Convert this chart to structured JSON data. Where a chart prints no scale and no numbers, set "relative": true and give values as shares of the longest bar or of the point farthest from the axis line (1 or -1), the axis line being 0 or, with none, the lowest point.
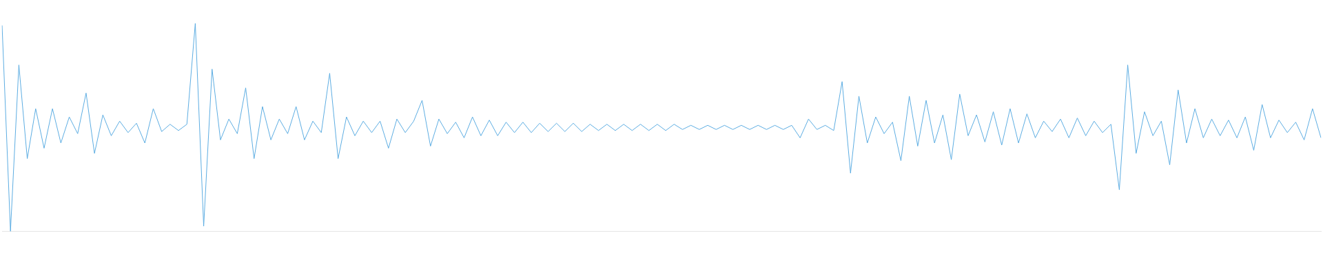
{
  "chart_data": {
    "type": "line",
    "relative": true,
    "marker": "none",
    "legend": false,
    "categories": [
      null,
      null,
      null,
      null,
      null,
      null,
      null,
      null,
      null,
      null,
      null,
      null,
      null,
      null,
      null,
      null,
      null,
      null,
      null,
      null,
      null,
      null,
      null,
      null,
      null,
      null,
      null,
      null,
      null,
      null,
      null,
      null,
      null,
      null,
      null,
      null,
      null,
      null,
      null,
      null,
      null,
      null,
      null,
      null,
      null,
      null,
      null,
      null,
      null,
      null,
      null,
      null,
      null,
      null,
      null,
      null,
      null,
      null,
      null,
      null,
      null,
      null,
      null,
      null,
      null,
      null,
      null,
      null,
      null,
      null,
      null,
      null,
      null,
      null,
      null,
      null,
      null,
      null,
      null,
      null,
      null,
      null,
      null,
      null,
      null,
      null,
      null,
      null,
      null,
      null,
      null,
      null,
      null,
      null,
      null,
      null,
      null,
      null,
      null,
      null,
      null,
      null,
      null,
      null,
      null,
      null,
      null,
      null,
      null,
      null,
      null,
      null,
      null,
      null,
      null,
      null,
      null,
      null,
      null,
      null,
      null,
      null,
      null,
      null,
      null,
      null,
      null,
      null,
      null,
      null,
      null,
      null,
      null,
      null,
      null,
      null,
      null,
      null,
      null,
      null,
      null,
      null,
      null,
      null,
      null,
      null,
      null,
      null,
      null,
      null,
      null,
      null,
      null,
      null,
      null,
      null,
      null,
      null
    ],
    "series": [
      {
        "color": "#5dade2",
        "values": [
          0.99,
          0,
          0.8,
          0.35,
          0.59,
          0.4,
          0.59,
          0.425,
          0.55,
          0.47,
          0.665,
          0.375,
          0.56,
          0.46,
          0.53,
          0.475,
          0.52,
          0.425,
          0.59,
          0.48,
          0.515,
          0.485,
          0.515,
          1,
          0.025,
          0.78,
          0.44,
          0.54,
          0.47,
          0.69,
          0.35,
          0.6,
          0.44,
          0.54,
          0.47,
          0.6,
          0.44,
          0.53,
          0.475,
          0.76,
          0.35,
          0.55,
          0.46,
          0.53,
          0.475,
          0.53,
          0.4,
          0.54,
          0.475,
          0.53,
          0.63,
          0.41,
          0.54,
          0.47,
          0.525,
          0.45,
          0.55,
          0.46,
          0.535,
          0.46,
          0.525,
          0.475,
          0.525,
          0.475,
          0.52,
          0.48,
          0.52,
          0.48,
          0.52,
          0.48,
          0.515,
          0.485,
          0.515,
          0.485,
          0.515,
          0.485,
          0.515,
          0.485,
          0.515,
          0.485,
          0.515,
          0.49,
          0.51,
          0.49,
          0.51,
          0.49,
          0.51,
          0.49,
          0.51,
          0.49,
          0.51,
          0.49,
          0.51,
          0.49,
          0.51,
          0.45,
          0.54,
          0.49,
          0.51,
          0.485,
          0.72,
          0.28,
          0.65,
          0.425,
          0.55,
          0.47,
          0.525,
          0.34,
          0.65,
          0.41,
          0.63,
          0.425,
          0.56,
          0.345,
          0.66,
          0.46,
          0.56,
          0.43,
          0.575,
          0.415,
          0.59,
          0.425,
          0.565,
          0.45,
          0.53,
          0.48,
          0.54,
          0.45,
          0.545,
          0.46,
          0.53,
          0.475,
          0.515,
          0.2,
          0.8,
          0.375,
          0.575,
          0.46,
          0.53,
          0.32,
          0.68,
          0.425,
          0.59,
          0.45,
          0.54,
          0.46,
          0.535,
          0.45,
          0.55,
          0.39,
          0.61,
          0.45,
          0.535,
          0.475,
          0.525,
          0.44,
          0.59,
          0.45
        ]
      }
    ]
  }
}
